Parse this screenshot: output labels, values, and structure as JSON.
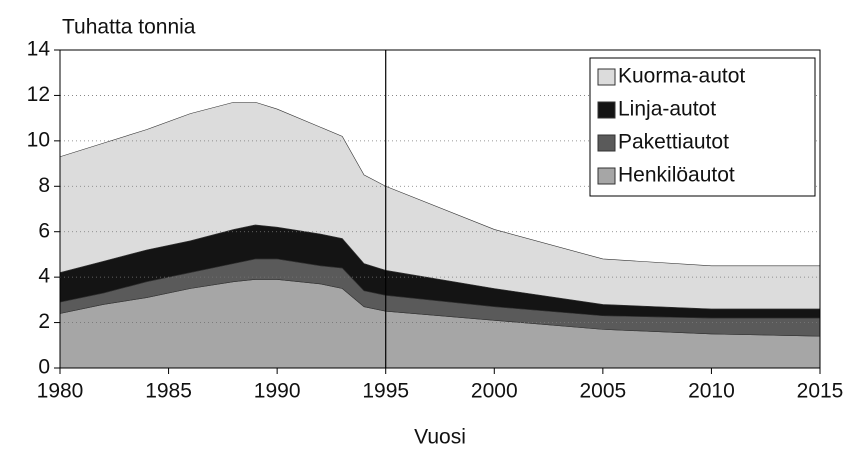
{
  "chart_data": {
    "type": "stacked-area",
    "title": "Tuhatta tonnia",
    "xlabel": "Vuosi",
    "x": [
      1980,
      1982,
      1984,
      1986,
      1988,
      1989,
      1990,
      1992,
      1993,
      1994,
      1995,
      2000,
      2005,
      2010,
      2015
    ],
    "series": [
      {
        "name": "Henkilöautot",
        "color": "#a6a6a6",
        "values": [
          2.4,
          2.8,
          3.1,
          3.5,
          3.8,
          3.9,
          3.9,
          3.7,
          3.5,
          2.7,
          2.5,
          2.1,
          1.7,
          1.5,
          1.4
        ]
      },
      {
        "name": "Pakettiautot",
        "color": "#5a5a5a",
        "values": [
          0.5,
          0.5,
          0.7,
          0.7,
          0.8,
          0.9,
          0.9,
          0.8,
          0.9,
          0.7,
          0.7,
          0.6,
          0.6,
          0.7,
          0.8
        ]
      },
      {
        "name": "Linja-autot",
        "color": "#141414",
        "values": [
          1.3,
          1.4,
          1.4,
          1.4,
          1.5,
          1.5,
          1.4,
          1.4,
          1.3,
          1.2,
          1.1,
          0.8,
          0.5,
          0.4,
          0.4
        ]
      },
      {
        "name": "Kuorma-autot",
        "color": "#dcdcdc",
        "values": [
          5.1,
          5.2,
          5.3,
          5.6,
          5.6,
          5.4,
          5.2,
          4.7,
          4.5,
          3.9,
          3.7,
          2.6,
          2.0,
          1.9,
          1.9
        ]
      }
    ],
    "vline": 1995,
    "xlim": [
      1980,
      2015
    ],
    "xticks": [
      1980,
      1985,
      1990,
      1995,
      2000,
      2005,
      2010,
      2015
    ],
    "ylim": [
      0,
      14
    ],
    "yticks": [
      0,
      2,
      4,
      6,
      8,
      10,
      12,
      14
    ],
    "grid": true,
    "legend": "upper right"
  }
}
